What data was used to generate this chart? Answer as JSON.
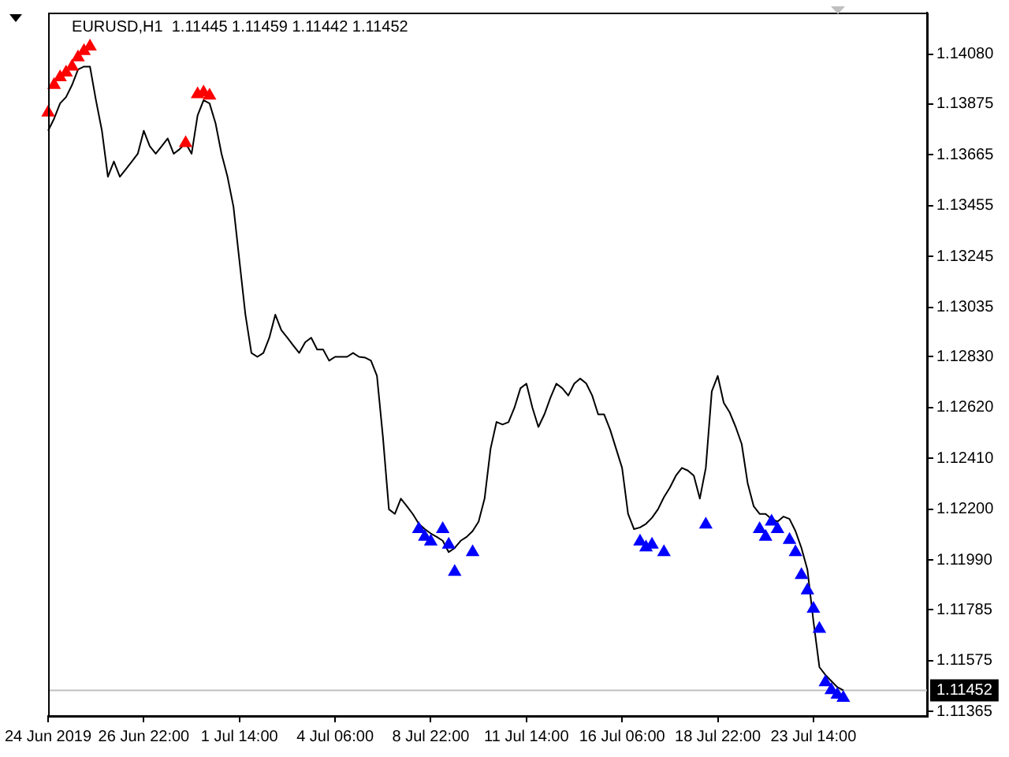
{
  "chart_data": {
    "type": "line",
    "title": "EURUSD,H1  1.11445 1.11459 1.11442 1.11452",
    "categories": [
      "24 Jun 2019",
      null,
      null,
      null,
      null,
      null,
      null,
      null,
      null,
      null,
      null,
      null,
      null,
      null,
      null,
      null,
      "26 Jun 22:00",
      null,
      null,
      null,
      null,
      null,
      null,
      null,
      null,
      null,
      null,
      null,
      null,
      null,
      null,
      null,
      "1 Jul 14:00",
      null,
      null,
      null,
      null,
      null,
      null,
      null,
      null,
      null,
      null,
      null,
      null,
      null,
      null,
      null,
      "4 Jul 06:00",
      null,
      null,
      null,
      null,
      null,
      null,
      null,
      null,
      null,
      null,
      null,
      null,
      null,
      null,
      null,
      "8 Jul 22:00",
      null,
      null,
      null,
      null,
      null,
      null,
      null,
      null,
      null,
      null,
      null,
      null,
      null,
      null,
      null,
      "11 Jul 14:00",
      null,
      null,
      null,
      null,
      null,
      null,
      null,
      null,
      null,
      null,
      null,
      null,
      null,
      null,
      null,
      "16 Jul 06:00",
      null,
      null,
      null,
      null,
      null,
      null,
      null,
      null,
      null,
      null,
      null,
      null,
      null,
      null,
      null,
      "18 Jul 22:00",
      null,
      null,
      null,
      null,
      null,
      null,
      null,
      null,
      null,
      null,
      null,
      null,
      null,
      null,
      null,
      "23 Jul 14:00",
      null,
      null,
      null,
      null,
      null,
      null,
      null,
      null,
      null,
      null,
      null,
      null,
      null,
      null,
      null,
      null,
      null,
      null,
      null
    ],
    "ylim": [
      1.11346,
      1.14252
    ],
    "yticks": [
      {
        "value": 1.1408,
        "label": "1.14080"
      },
      {
        "value": 1.13875,
        "label": "1.13875"
      },
      {
        "value": 1.13665,
        "label": "1.13665"
      },
      {
        "value": 1.13455,
        "label": "1.13455"
      },
      {
        "value": 1.13245,
        "label": "1.13245"
      },
      {
        "value": 1.13035,
        "label": "1.13035"
      },
      {
        "value": 1.1283,
        "label": "1.12830"
      },
      {
        "value": 1.1262,
        "label": "1.12620"
      },
      {
        "value": 1.1241,
        "label": "1.12410"
      },
      {
        "value": 1.122,
        "label": "1.12200"
      },
      {
        "value": 1.1199,
        "label": "1.11990"
      },
      {
        "value": 1.11785,
        "label": "1.11785"
      },
      {
        "value": 1.11575,
        "label": "1.11575"
      },
      {
        "value": 1.11365,
        "label": "1.11365"
      }
    ],
    "grid": false,
    "legend": false,
    "ref_lines": [
      {
        "axis": "y",
        "value": 1.11452,
        "label": "1.11452",
        "color": "#c0c0c0"
      }
    ],
    "series": [
      {
        "color": "#000000",
        "marker": "none",
        "values": [
          1.13764,
          1.13814,
          1.13877,
          1.13903,
          1.13953,
          1.14017,
          1.14029,
          1.14029,
          1.1389,
          1.13764,
          1.13574,
          1.13637,
          1.13574,
          1.13605,
          1.13637,
          1.13669,
          1.13764,
          1.137,
          1.13669,
          1.137,
          1.13732,
          1.13669,
          1.13688,
          1.13713,
          1.13669,
          1.13827,
          1.1389,
          1.13877,
          1.13795,
          1.13669,
          1.13574,
          1.1345,
          1.13226,
          1.13004,
          1.12846,
          1.1283,
          1.12846,
          1.12909,
          1.13004,
          1.1294,
          1.12909,
          1.12877,
          1.12846,
          1.1289,
          1.12909,
          1.1286,
          1.1286,
          1.12814,
          1.1283,
          1.1283,
          1.1283,
          1.12846,
          1.1283,
          1.12827,
          1.12814,
          1.12751,
          1.12498,
          1.122,
          1.12181,
          1.12244,
          1.12213,
          1.1218,
          1.1214,
          1.12118,
          1.121,
          1.12086,
          1.1207,
          1.12023,
          1.1204,
          1.1207,
          1.12086,
          1.1211,
          1.12149,
          1.12244,
          1.1245,
          1.12561,
          1.1255,
          1.1256,
          1.1262,
          1.127,
          1.12719,
          1.1262,
          1.1254,
          1.12592,
          1.1266,
          1.12719,
          1.127,
          1.1267,
          1.12719,
          1.1274,
          1.1272,
          1.1267,
          1.12592,
          1.12592,
          1.12529,
          1.1245,
          1.12371,
          1.12181,
          1.12118,
          1.12125,
          1.1214,
          1.12165,
          1.122,
          1.1225,
          1.1229,
          1.12339,
          1.12371,
          1.1236,
          1.12339,
          1.12244,
          1.12371,
          1.12687,
          1.12751,
          1.1264,
          1.126,
          1.1254,
          1.1247,
          1.12308,
          1.12213,
          1.12181,
          1.12181,
          1.1216,
          1.12149,
          1.1217,
          1.1216,
          1.1211,
          1.1204,
          1.1195,
          1.11738,
          1.11548,
          1.11516,
          1.1149,
          1.11465,
          1.11452,
          null,
          null,
          null,
          null,
          null,
          null,
          null,
          null,
          null,
          null,
          null,
          null,
          null,
          null
        ]
      },
      {
        "type": "scatter",
        "color": "#ff0000",
        "marker": "triangle",
        "values": [
          1.13839,
          1.13953,
          1.13985,
          1.14004,
          1.14029,
          1.14067,
          1.14093,
          1.14112,
          null,
          null,
          null,
          null,
          null,
          null,
          null,
          null,
          null,
          null,
          null,
          null,
          null,
          null,
          null,
          1.13713,
          null,
          1.13915,
          1.13922,
          1.13909,
          null,
          null,
          null,
          null,
          null,
          null,
          null,
          null,
          null,
          null,
          null,
          null,
          null,
          null,
          null,
          null,
          null,
          null,
          null,
          null,
          null,
          null,
          null,
          null,
          null,
          null,
          null,
          null,
          null,
          null,
          null,
          null,
          null,
          null,
          null,
          null,
          null,
          null,
          null,
          null,
          null,
          null,
          null,
          null,
          null,
          null,
          null,
          null,
          null,
          null,
          null,
          null,
          null,
          null,
          null,
          null,
          null,
          null,
          null,
          null,
          null,
          null,
          null,
          null,
          null,
          null,
          null,
          null,
          null,
          null,
          null,
          null,
          null,
          null,
          null,
          null,
          null,
          null,
          null,
          null,
          null,
          null,
          null,
          null,
          null,
          null,
          null,
          null,
          null,
          null,
          null,
          null,
          null,
          null,
          null,
          null,
          null,
          null,
          null,
          null,
          null,
          null,
          null,
          null,
          null,
          null,
          null,
          null,
          null,
          null,
          null,
          null,
          null,
          null,
          null,
          null,
          null,
          null,
          null,
          null
        ]
      },
      {
        "type": "scatter",
        "color": "#0000ff",
        "marker": "triangle",
        "values": [
          null,
          null,
          null,
          null,
          null,
          null,
          null,
          null,
          null,
          null,
          null,
          null,
          null,
          null,
          null,
          null,
          null,
          null,
          null,
          null,
          null,
          null,
          null,
          null,
          null,
          null,
          null,
          null,
          null,
          null,
          null,
          null,
          null,
          null,
          null,
          null,
          null,
          null,
          null,
          null,
          null,
          null,
          null,
          null,
          null,
          null,
          null,
          null,
          null,
          null,
          null,
          null,
          null,
          null,
          null,
          null,
          null,
          null,
          null,
          null,
          null,
          null,
          1.12118,
          1.12086,
          1.12067,
          null,
          1.12118,
          1.12054,
          1.11941,
          null,
          null,
          1.12023,
          null,
          null,
          null,
          null,
          null,
          null,
          null,
          null,
          null,
          null,
          null,
          null,
          null,
          null,
          null,
          null,
          null,
          null,
          null,
          null,
          null,
          null,
          null,
          null,
          null,
          null,
          null,
          1.12067,
          1.12042,
          1.12054,
          null,
          1.12023,
          null,
          null,
          null,
          null,
          null,
          null,
          1.12137,
          null,
          null,
          null,
          null,
          null,
          null,
          null,
          null,
          1.12118,
          1.12086,
          1.12149,
          1.12118,
          null,
          1.12073,
          1.12023,
          1.11928,
          1.11865,
          1.11789,
          1.11706,
          1.11485,
          1.11453,
          1.11434,
          1.11421,
          null,
          null,
          null,
          null,
          null,
          null,
          null,
          null,
          null,
          null,
          null,
          null,
          null,
          null
        ]
      }
    ]
  }
}
